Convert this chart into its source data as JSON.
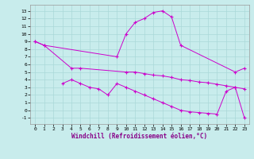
{
  "xlabel": "Windchill (Refroidissement éolien,°C)",
  "bg_color": "#c8ecec",
  "grid_color": "#aad8d8",
  "line_color": "#cc00cc",
  "series": {
    "s1_x": [
      0,
      1,
      9,
      10,
      11,
      12,
      13,
      14,
      15,
      16,
      22,
      23
    ],
    "s1_y": [
      9.0,
      8.5,
      7.0,
      10.0,
      11.5,
      12.0,
      12.8,
      13.0,
      12.2,
      8.5,
      5.0,
      5.5
    ],
    "s2_x": [
      0,
      1,
      4,
      5,
      10,
      11,
      12,
      13,
      14,
      15,
      16,
      17,
      18,
      19,
      20,
      21,
      22,
      23
    ],
    "s2_y": [
      9.0,
      8.5,
      5.5,
      5.5,
      5.0,
      5.0,
      4.8,
      4.6,
      4.5,
      4.3,
      4.0,
      3.9,
      3.7,
      3.6,
      3.4,
      3.2,
      3.0,
      2.8
    ],
    "s3_x": [
      3,
      4,
      5,
      6,
      7,
      8,
      9,
      10,
      11,
      12,
      13,
      14,
      15,
      16,
      17,
      18,
      19,
      20,
      21,
      22,
      23
    ],
    "s3_y": [
      3.5,
      4.0,
      3.5,
      3.0,
      2.8,
      2.0,
      3.5,
      3.0,
      2.5,
      2.0,
      1.5,
      1.0,
      0.5,
      0.0,
      -0.2,
      -0.3,
      -0.4,
      -0.5,
      2.5,
      3.0,
      -1.0
    ]
  },
  "ylim": [
    -1.8,
    13.8
  ],
  "xlim": [
    -0.5,
    23.5
  ],
  "yticks": [
    -1,
    0,
    1,
    2,
    3,
    4,
    5,
    6,
    7,
    8,
    9,
    10,
    11,
    12,
    13
  ],
  "xticks": [
    0,
    1,
    2,
    3,
    4,
    5,
    6,
    7,
    8,
    9,
    10,
    11,
    12,
    13,
    14,
    15,
    16,
    17,
    18,
    19,
    20,
    21,
    22,
    23
  ]
}
